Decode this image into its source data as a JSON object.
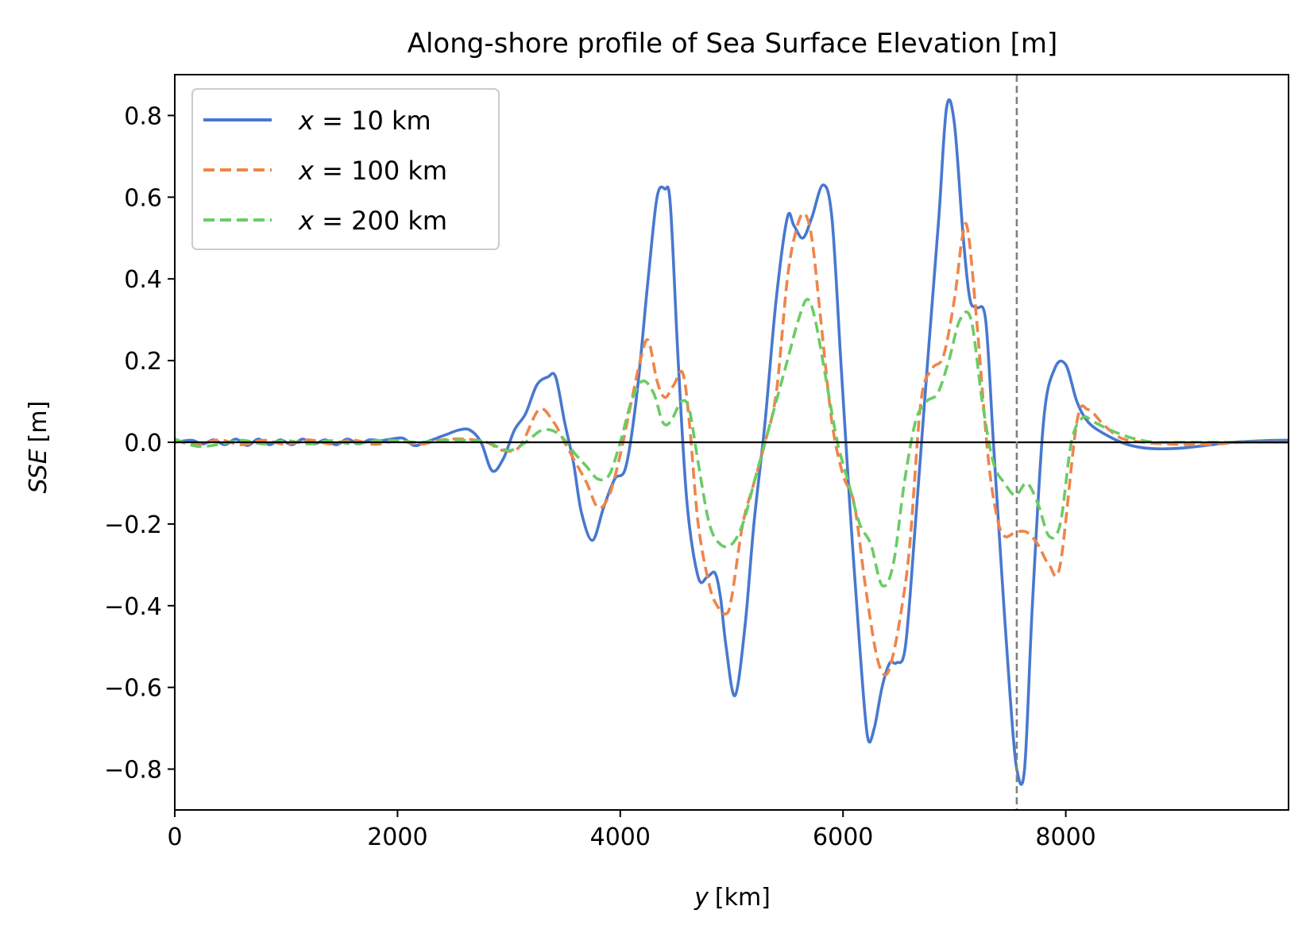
{
  "chart_data": {
    "type": "line",
    "title": "Along-shore profile of Sea Surface Elevation [m]",
    "xlabel_var": "y",
    "xlabel_unit": "[km]",
    "ylabel_var": "SSE",
    "ylabel_unit": "[m]",
    "xlim": [
      0,
      10000
    ],
    "ylim": [
      -0.9,
      0.9
    ],
    "x_ticks": [
      0,
      2000,
      4000,
      6000,
      8000
    ],
    "x_tick_labels": [
      "0",
      "2000",
      "4000",
      "6000",
      "8000"
    ],
    "y_ticks": [
      -0.8,
      -0.6,
      -0.4,
      -0.2,
      0.0,
      0.2,
      0.4,
      0.6,
      0.8
    ],
    "y_tick_labels": [
      "−0.8",
      "−0.6",
      "−0.4",
      "−0.2",
      "0.0",
      "0.2",
      "0.4",
      "0.6",
      "0.8"
    ],
    "grid": false,
    "legend_position": "top-left",
    "reference_lines": [
      {
        "orientation": "horizontal",
        "value": 0.0,
        "color": "#000000",
        "style": "solid"
      },
      {
        "orientation": "vertical",
        "value": 7560,
        "color": "#808080",
        "style": "dashed"
      }
    ],
    "series": [
      {
        "name": "x = 10 km",
        "legend_var": "x",
        "legend_text": " = 10 km",
        "color": "#4878cf",
        "style": "solid",
        "x": [
          0,
          150,
          250,
          350,
          450,
          550,
          650,
          750,
          850,
          950,
          1050,
          1150,
          1250,
          1350,
          1450,
          1550,
          1650,
          1750,
          1850,
          1950,
          2050,
          2150,
          2250,
          2350,
          2450,
          2550,
          2650,
          2750,
          2850,
          2950,
          3050,
          3150,
          3250,
          3350,
          3420,
          3500,
          3580,
          3650,
          3750,
          3850,
          3950,
          4050,
          4150,
          4250,
          4330,
          4400,
          4450,
          4520,
          4600,
          4700,
          4780,
          4850,
          4900,
          4950,
          5030,
          5120,
          5200,
          5300,
          5400,
          5500,
          5560,
          5640,
          5720,
          5820,
          5900,
          5980,
          6060,
          6150,
          6220,
          6280,
          6350,
          6420,
          6480,
          6560,
          6650,
          6760,
          6860,
          6930,
          7000,
          7080,
          7140,
          7200,
          7280,
          7350,
          7420,
          7500,
          7560,
          7630,
          7700,
          7800,
          7900,
          8000,
          8100,
          8200,
          8350,
          8550,
          8750,
          9000,
          9250,
          9500,
          9800,
          10000
        ],
        "values": [
          0.0,
          0.005,
          -0.004,
          0.006,
          -0.006,
          0.008,
          -0.008,
          0.008,
          -0.006,
          0.006,
          -0.006,
          0.008,
          -0.004,
          0.006,
          -0.006,
          0.008,
          -0.004,
          0.006,
          0.004,
          0.008,
          0.01,
          -0.008,
          0.0,
          0.01,
          0.02,
          0.03,
          0.03,
          0.0,
          -0.07,
          -0.04,
          0.03,
          0.07,
          0.14,
          0.16,
          0.16,
          0.05,
          -0.05,
          -0.17,
          -0.24,
          -0.16,
          -0.09,
          -0.06,
          0.12,
          0.4,
          0.6,
          0.62,
          0.58,
          0.2,
          -0.15,
          -0.33,
          -0.33,
          -0.32,
          -0.38,
          -0.5,
          -0.62,
          -0.45,
          -0.2,
          0.05,
          0.35,
          0.55,
          0.53,
          0.5,
          0.55,
          0.63,
          0.55,
          0.2,
          -0.15,
          -0.5,
          -0.72,
          -0.7,
          -0.6,
          -0.54,
          -0.54,
          -0.5,
          -0.2,
          0.2,
          0.55,
          0.82,
          0.78,
          0.5,
          0.35,
          0.33,
          0.3,
          0.0,
          -0.3,
          -0.62,
          -0.8,
          -0.8,
          -0.4,
          0.05,
          0.18,
          0.19,
          0.1,
          0.05,
          0.02,
          -0.005,
          -0.015,
          -0.015,
          -0.008,
          0.0,
          0.004,
          0.005
        ]
      },
      {
        "name": "x = 100 km",
        "legend_var": "x",
        "legend_text": " = 100 km",
        "color": "#ee854a",
        "style": "dashed",
        "x": [
          0,
          200,
          400,
          600,
          800,
          1000,
          1200,
          1400,
          1600,
          1800,
          2000,
          2200,
          2400,
          2600,
          2800,
          2950,
          3100,
          3270,
          3400,
          3500,
          3600,
          3700,
          3800,
          3900,
          4000,
          4100,
          4180,
          4250,
          4330,
          4400,
          4480,
          4560,
          4620,
          4700,
          4800,
          4870,
          4950,
          5000,
          5100,
          5200,
          5300,
          5400,
          5500,
          5580,
          5650,
          5720,
          5800,
          5900,
          6000,
          6100,
          6200,
          6300,
          6380,
          6450,
          6530,
          6600,
          6700,
          6800,
          6900,
          7000,
          7070,
          7120,
          7200,
          7300,
          7380,
          7450,
          7550,
          7650,
          7750,
          7850,
          7950,
          8100,
          8200,
          8350,
          8500,
          8700,
          9000,
          9300,
          9600,
          10000
        ],
        "values": [
          0.005,
          -0.006,
          0.006,
          -0.006,
          0.005,
          -0.005,
          0.006,
          -0.004,
          0.005,
          -0.005,
          0.004,
          -0.005,
          0.006,
          0.008,
          0.0,
          -0.02,
          -0.01,
          0.08,
          0.05,
          0.0,
          -0.05,
          -0.1,
          -0.16,
          -0.13,
          -0.03,
          0.1,
          0.2,
          0.25,
          0.15,
          0.11,
          0.14,
          0.17,
          0.05,
          -0.2,
          -0.35,
          -0.4,
          -0.42,
          -0.38,
          -0.2,
          -0.1,
          0.0,
          0.12,
          0.4,
          0.52,
          0.56,
          0.5,
          0.3,
          0.05,
          -0.08,
          -0.15,
          -0.35,
          -0.52,
          -0.57,
          -0.52,
          -0.4,
          -0.25,
          0.1,
          0.18,
          0.21,
          0.35,
          0.5,
          0.52,
          0.3,
          -0.03,
          -0.18,
          -0.23,
          -0.22,
          -0.22,
          -0.25,
          -0.3,
          -0.3,
          0.05,
          0.08,
          0.04,
          0.01,
          0.0,
          -0.005,
          -0.005,
          0.0,
          0.0
        ]
      },
      {
        "name": "x = 200 km",
        "legend_var": "x",
        "legend_text": " = 200 km",
        "color": "#6acc64",
        "style": "dashed",
        "x": [
          0,
          200,
          400,
          600,
          800,
          1000,
          1200,
          1400,
          1600,
          1800,
          2000,
          2200,
          2400,
          2600,
          2800,
          3000,
          3150,
          3300,
          3450,
          3600,
          3700,
          3800,
          3900,
          4000,
          4100,
          4200,
          4300,
          4380,
          4450,
          4550,
          4620,
          4700,
          4800,
          4900,
          5000,
          5100,
          5200,
          5300,
          5400,
          5500,
          5600,
          5680,
          5750,
          5850,
          5950,
          6050,
          6150,
          6250,
          6350,
          6450,
          6550,
          6650,
          6750,
          6850,
          6950,
          7050,
          7150,
          7250,
          7350,
          7450,
          7550,
          7650,
          7750,
          7850,
          7950,
          8050,
          8150,
          8250,
          8400,
          8600,
          8800,
          9000,
          9300,
          9600,
          10000
        ],
        "values": [
          0.008,
          -0.01,
          -0.005,
          0.005,
          -0.004,
          0.004,
          -0.004,
          0.004,
          -0.004,
          0.004,
          0.004,
          0.0,
          0.005,
          0.005,
          0.0,
          -0.02,
          0.0,
          0.03,
          0.02,
          -0.03,
          -0.06,
          -0.09,
          -0.08,
          0.0,
          0.1,
          0.15,
          0.12,
          0.05,
          0.05,
          0.1,
          0.08,
          -0.05,
          -0.2,
          -0.25,
          -0.25,
          -0.2,
          -0.1,
          0.0,
          0.1,
          0.2,
          0.3,
          0.35,
          0.3,
          0.15,
          0.0,
          -0.1,
          -0.2,
          -0.25,
          -0.35,
          -0.3,
          -0.1,
          0.05,
          0.1,
          0.12,
          0.2,
          0.3,
          0.3,
          0.1,
          -0.05,
          -0.1,
          -0.13,
          -0.1,
          -0.15,
          -0.23,
          -0.2,
          0.0,
          0.06,
          0.05,
          0.03,
          0.01,
          0.0,
          0.0,
          0.0,
          0.0,
          0.0
        ]
      }
    ]
  }
}
